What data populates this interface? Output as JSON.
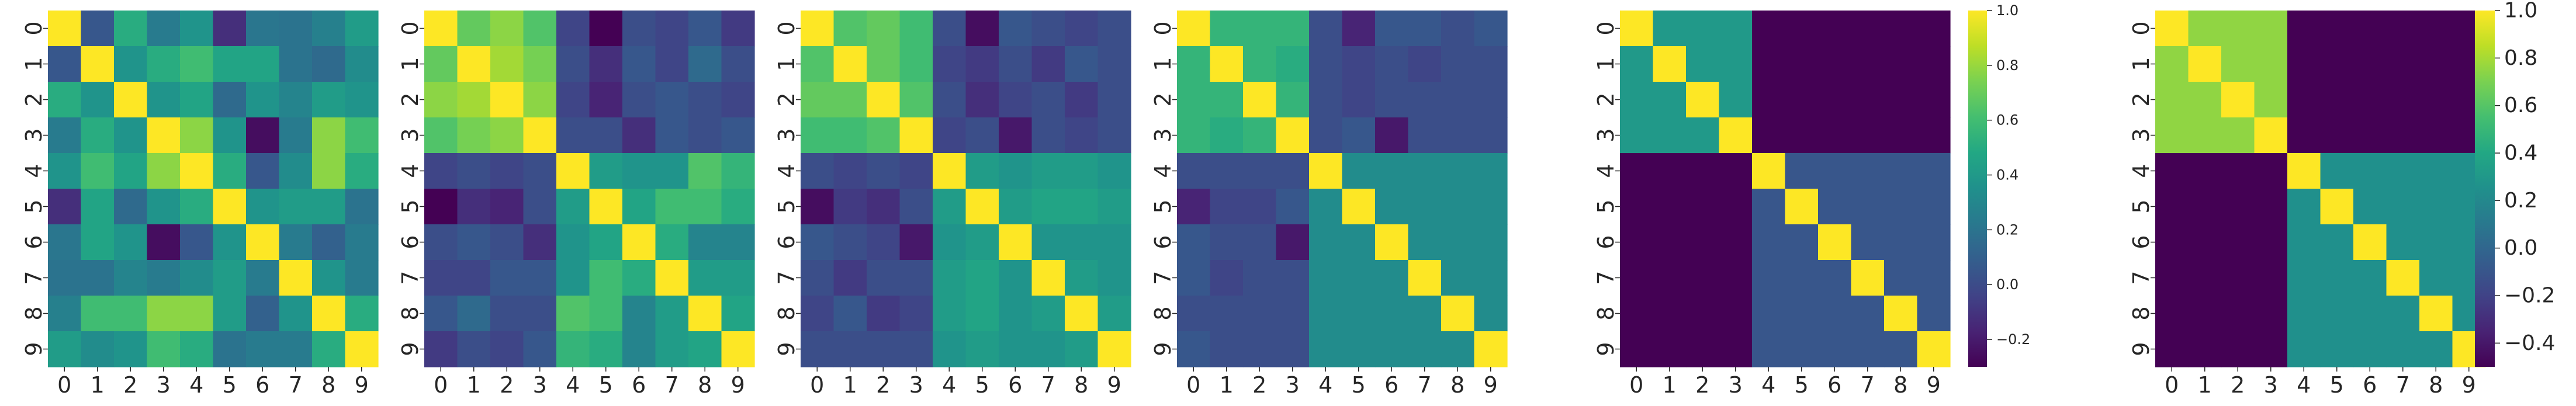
{
  "chart_data": [
    {
      "type": "heatmap",
      "title": "",
      "xlabel": "",
      "ylabel": "",
      "x_ticks": [
        "0",
        "1",
        "2",
        "3",
        "4",
        "5",
        "6",
        "7",
        "8",
        "9"
      ],
      "y_ticks": [
        "0",
        "1",
        "2",
        "3",
        "4",
        "5",
        "6",
        "7",
        "8",
        "9"
      ],
      "colormap": "viridis",
      "vrange": [
        -0.45,
        1.0
      ],
      "colorbar": false,
      "values": [
        [
          1.0,
          -0.05,
          0.45,
          0.15,
          0.3,
          -0.25,
          0.12,
          0.1,
          0.18,
          0.35
        ],
        [
          -0.05,
          1.0,
          0.3,
          0.45,
          0.55,
          0.4,
          0.4,
          0.1,
          0.05,
          0.25
        ],
        [
          0.45,
          0.3,
          1.0,
          0.3,
          0.4,
          0.05,
          0.3,
          0.2,
          0.35,
          0.3
        ],
        [
          0.15,
          0.45,
          0.3,
          1.0,
          0.75,
          0.3,
          -0.4,
          0.15,
          0.75,
          0.55
        ],
        [
          0.3,
          0.55,
          0.4,
          0.75,
          1.0,
          0.45,
          -0.05,
          0.25,
          0.75,
          0.45
        ],
        [
          -0.25,
          0.4,
          0.05,
          0.3,
          0.45,
          1.0,
          0.3,
          0.35,
          0.35,
          0.1
        ],
        [
          0.12,
          0.4,
          0.3,
          -0.4,
          -0.05,
          0.3,
          1.0,
          0.15,
          0.0,
          0.15
        ],
        [
          0.1,
          0.1,
          0.2,
          0.15,
          0.25,
          0.35,
          0.15,
          1.0,
          0.3,
          0.15
        ],
        [
          0.18,
          0.55,
          0.55,
          0.75,
          0.75,
          0.35,
          0.0,
          0.3,
          1.0,
          0.45
        ],
        [
          0.35,
          0.25,
          0.3,
          0.55,
          0.45,
          0.1,
          0.15,
          0.15,
          0.45,
          1.0
        ]
      ]
    },
    {
      "type": "heatmap",
      "title": "",
      "xlabel": "",
      "ylabel": "",
      "x_ticks": [
        "0",
        "1",
        "2",
        "3",
        "4",
        "5",
        "6",
        "7",
        "8",
        "9"
      ],
      "y_ticks": [
        "0",
        "1",
        "2",
        "3",
        "4",
        "5",
        "6",
        "7",
        "8",
        "9"
      ],
      "colormap": "viridis",
      "vrange": [
        -0.45,
        1.0
      ],
      "colorbar": false,
      "values": [
        [
          1.0,
          0.65,
          0.75,
          0.6,
          -0.15,
          -0.45,
          -0.1,
          -0.15,
          -0.05,
          -0.2
        ],
        [
          0.65,
          1.0,
          0.8,
          0.7,
          -0.1,
          -0.25,
          -0.05,
          -0.15,
          0.05,
          -0.1
        ],
        [
          0.75,
          0.8,
          1.0,
          0.75,
          -0.15,
          -0.3,
          -0.1,
          -0.05,
          -0.1,
          -0.15
        ],
        [
          0.6,
          0.7,
          0.75,
          1.0,
          -0.1,
          -0.1,
          -0.25,
          -0.05,
          -0.1,
          -0.05
        ],
        [
          -0.15,
          -0.1,
          -0.15,
          -0.1,
          1.0,
          0.35,
          0.3,
          0.3,
          0.6,
          0.5
        ],
        [
          -0.45,
          -0.25,
          -0.3,
          -0.1,
          0.35,
          1.0,
          0.4,
          0.55,
          0.55,
          0.45
        ],
        [
          -0.1,
          -0.05,
          -0.1,
          -0.25,
          0.3,
          0.4,
          1.0,
          0.45,
          0.2,
          0.2
        ],
        [
          -0.15,
          -0.15,
          -0.05,
          -0.05,
          0.3,
          0.55,
          0.45,
          1.0,
          0.35,
          0.35
        ],
        [
          -0.05,
          0.05,
          -0.1,
          -0.1,
          0.6,
          0.55,
          0.2,
          0.35,
          1.0,
          0.4
        ],
        [
          -0.2,
          -0.1,
          -0.15,
          -0.05,
          0.5,
          0.45,
          0.2,
          0.35,
          0.4,
          1.0
        ]
      ]
    },
    {
      "type": "heatmap",
      "title": "",
      "xlabel": "",
      "ylabel": "",
      "x_ticks": [
        "0",
        "1",
        "2",
        "3",
        "4",
        "5",
        "6",
        "7",
        "8",
        "9"
      ],
      "y_ticks": [
        "0",
        "1",
        "2",
        "3",
        "4",
        "5",
        "6",
        "7",
        "8",
        "9"
      ],
      "colormap": "viridis",
      "vrange": [
        -0.45,
        1.0
      ],
      "colorbar": false,
      "values": [
        [
          1.0,
          0.6,
          0.65,
          0.55,
          -0.1,
          -0.4,
          -0.05,
          -0.1,
          -0.15,
          -0.1
        ],
        [
          0.6,
          1.0,
          0.65,
          0.55,
          -0.15,
          -0.2,
          -0.1,
          -0.2,
          -0.05,
          -0.1
        ],
        [
          0.65,
          0.65,
          1.0,
          0.6,
          -0.1,
          -0.25,
          -0.15,
          -0.1,
          -0.2,
          -0.1
        ],
        [
          0.55,
          0.55,
          0.6,
          1.0,
          -0.15,
          -0.1,
          -0.35,
          -0.1,
          -0.15,
          -0.1
        ],
        [
          -0.1,
          -0.15,
          -0.1,
          -0.15,
          1.0,
          0.35,
          0.3,
          0.35,
          0.35,
          0.3
        ],
        [
          -0.4,
          -0.2,
          -0.25,
          -0.1,
          0.35,
          1.0,
          0.35,
          0.4,
          0.4,
          0.35
        ],
        [
          -0.05,
          -0.1,
          -0.15,
          -0.35,
          0.3,
          0.35,
          1.0,
          0.3,
          0.3,
          0.3
        ],
        [
          -0.1,
          -0.2,
          -0.1,
          -0.1,
          0.35,
          0.4,
          0.3,
          1.0,
          0.35,
          0.3
        ],
        [
          -0.15,
          -0.05,
          -0.2,
          -0.15,
          0.35,
          0.4,
          0.3,
          0.35,
          1.0,
          0.35
        ],
        [
          -0.1,
          -0.1,
          -0.1,
          -0.1,
          0.3,
          0.35,
          0.3,
          0.3,
          0.35,
          1.0
        ]
      ]
    },
    {
      "type": "heatmap",
      "title": "",
      "xlabel": "",
      "ylabel": "",
      "x_ticks": [
        "0",
        "1",
        "2",
        "3",
        "4",
        "5",
        "6",
        "7",
        "8",
        "9"
      ],
      "y_ticks": [
        "0",
        "1",
        "2",
        "3",
        "4",
        "5",
        "6",
        "7",
        "8",
        "9"
      ],
      "colormap": "viridis",
      "vrange": [
        -0.45,
        1.0
      ],
      "colorbar": false,
      "values": [
        [
          1.0,
          0.5,
          0.5,
          0.5,
          -0.1,
          -0.3,
          -0.05,
          -0.05,
          -0.1,
          -0.05
        ],
        [
          0.5,
          1.0,
          0.5,
          0.45,
          -0.1,
          -0.15,
          -0.1,
          -0.15,
          -0.1,
          -0.1
        ],
        [
          0.5,
          0.5,
          1.0,
          0.5,
          -0.1,
          -0.15,
          -0.1,
          -0.1,
          -0.1,
          -0.1
        ],
        [
          0.5,
          0.45,
          0.5,
          1.0,
          -0.1,
          -0.05,
          -0.35,
          -0.1,
          -0.1,
          -0.1
        ],
        [
          -0.1,
          -0.1,
          -0.1,
          -0.1,
          1.0,
          0.25,
          0.25,
          0.25,
          0.25,
          0.25
        ],
        [
          -0.3,
          -0.15,
          -0.15,
          -0.05,
          0.25,
          1.0,
          0.25,
          0.25,
          0.25,
          0.25
        ],
        [
          -0.05,
          -0.1,
          -0.1,
          -0.35,
          0.25,
          0.25,
          1.0,
          0.25,
          0.25,
          0.25
        ],
        [
          -0.05,
          -0.15,
          -0.1,
          -0.1,
          0.25,
          0.25,
          0.25,
          1.0,
          0.25,
          0.25
        ],
        [
          -0.1,
          -0.1,
          -0.1,
          -0.1,
          0.25,
          0.25,
          0.25,
          0.25,
          1.0,
          0.25
        ],
        [
          -0.05,
          -0.1,
          -0.1,
          -0.1,
          0.25,
          0.25,
          0.25,
          0.25,
          0.25,
          1.0
        ]
      ]
    },
    {
      "type": "heatmap",
      "title": "",
      "xlabel": "",
      "ylabel": "",
      "x_ticks": [
        "0",
        "1",
        "2",
        "3",
        "4",
        "5",
        "6",
        "7",
        "8",
        "9"
      ],
      "y_ticks": [
        "0",
        "1",
        "2",
        "3",
        "4",
        "5",
        "6",
        "7",
        "8",
        "9"
      ],
      "colormap": "viridis",
      "vrange": [
        -0.3,
        1.0
      ],
      "colorbar": true,
      "colorbar_ticks": [
        "1.0",
        "0.8",
        "0.6",
        "0.4",
        "0.2",
        "0.0",
        "−0.2"
      ],
      "colorbar_tick_values": [
        1.0,
        0.8,
        0.6,
        0.4,
        0.2,
        0.0,
        -0.2
      ],
      "values": [
        [
          1.0,
          0.4,
          0.4,
          0.4,
          -0.3,
          -0.3,
          -0.3,
          -0.3,
          -0.3,
          -0.3
        ],
        [
          0.4,
          1.0,
          0.4,
          0.4,
          -0.3,
          -0.3,
          -0.3,
          -0.3,
          -0.3,
          -0.3
        ],
        [
          0.4,
          0.4,
          1.0,
          0.4,
          -0.3,
          -0.3,
          -0.3,
          -0.3,
          -0.3,
          -0.3
        ],
        [
          0.4,
          0.4,
          0.4,
          1.0,
          -0.3,
          -0.3,
          -0.3,
          -0.3,
          -0.3,
          -0.3
        ],
        [
          -0.3,
          -0.3,
          -0.3,
          -0.3,
          1.0,
          0.05,
          0.05,
          0.05,
          0.05,
          0.05
        ],
        [
          -0.3,
          -0.3,
          -0.3,
          -0.3,
          0.05,
          1.0,
          0.05,
          0.05,
          0.05,
          0.05
        ],
        [
          -0.3,
          -0.3,
          -0.3,
          -0.3,
          0.05,
          0.05,
          1.0,
          0.05,
          0.05,
          0.05
        ],
        [
          -0.3,
          -0.3,
          -0.3,
          -0.3,
          0.05,
          0.05,
          0.05,
          1.0,
          0.05,
          0.05
        ],
        [
          -0.3,
          -0.3,
          -0.3,
          -0.3,
          0.05,
          0.05,
          0.05,
          0.05,
          1.0,
          0.05
        ],
        [
          -0.3,
          -0.3,
          -0.3,
          -0.3,
          0.05,
          0.05,
          0.05,
          0.05,
          0.05,
          1.0
        ]
      ]
    },
    {
      "type": "heatmap",
      "title": "",
      "xlabel": "",
      "ylabel": "",
      "x_ticks": [
        "0",
        "1",
        "2",
        "3",
        "4",
        "5",
        "6",
        "7",
        "8",
        "9"
      ],
      "y_ticks": [
        "0",
        "1",
        "2",
        "3",
        "4",
        "5",
        "6",
        "7",
        "8",
        "9"
      ],
      "colormap": "viridis",
      "vrange": [
        -0.5,
        1.0
      ],
      "colorbar": true,
      "colorbar_ticks": [
        "1.0",
        "0.8",
        "0.6",
        "0.4",
        "0.2",
        "0.0",
        "−0.2",
        "−0.4"
      ],
      "colorbar_tick_values": [
        1.0,
        0.8,
        0.6,
        0.4,
        0.2,
        0.0,
        -0.2,
        -0.4
      ],
      "values": [
        [
          1.0,
          0.75,
          0.75,
          0.75,
          -0.5,
          -0.5,
          -0.5,
          -0.5,
          -0.5,
          -0.5
        ],
        [
          0.75,
          1.0,
          0.75,
          0.75,
          -0.5,
          -0.5,
          -0.5,
          -0.5,
          -0.5,
          -0.5
        ],
        [
          0.75,
          0.75,
          1.0,
          0.75,
          -0.5,
          -0.5,
          -0.5,
          -0.5,
          -0.5,
          -0.5
        ],
        [
          0.75,
          0.75,
          0.75,
          1.0,
          -0.5,
          -0.5,
          -0.5,
          -0.5,
          -0.5,
          -0.5
        ],
        [
          -0.5,
          -0.5,
          -0.5,
          -0.5,
          1.0,
          0.25,
          0.25,
          0.25,
          0.25,
          0.25
        ],
        [
          -0.5,
          -0.5,
          -0.5,
          -0.5,
          0.25,
          1.0,
          0.25,
          0.25,
          0.25,
          0.25
        ],
        [
          -0.5,
          -0.5,
          -0.5,
          -0.5,
          0.25,
          0.25,
          1.0,
          0.25,
          0.25,
          0.25
        ],
        [
          -0.5,
          -0.5,
          -0.5,
          -0.5,
          0.25,
          0.25,
          0.25,
          1.0,
          0.25,
          0.25
        ],
        [
          -0.5,
          -0.5,
          -0.5,
          -0.5,
          0.25,
          0.25,
          0.25,
          0.25,
          1.0,
          0.25
        ],
        [
          -0.5,
          -0.5,
          -0.5,
          -0.5,
          0.25,
          0.25,
          0.25,
          0.25,
          0.25,
          1.0
        ]
      ]
    }
  ]
}
